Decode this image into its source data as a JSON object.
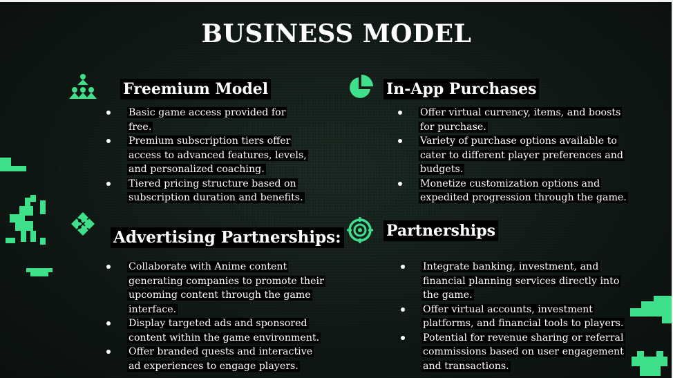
{
  "title": "BUSINESS MODEL",
  "accent_color": "#3fe08c",
  "sections": [
    {
      "heading": "Freemium Model",
      "icon": "people-hierarchy-icon",
      "items": [
        "Basic game access provided for free.",
        "Premium subscription tiers offer access to advanced features, levels, and personalized coaching.",
        "Tiered pricing structure based on subscription duration and benefits."
      ]
    },
    {
      "heading": "In-App Purchases",
      "icon": "pie-chart-icon",
      "items": [
        "Offer virtual currency, items, and boosts for purchase.",
        "Variety of purchase options available to cater to different player preferences and budgets.",
        "Monetize customization options and expedited progression through the game."
      ]
    },
    {
      "heading": "Advertising Partnerships:",
      "icon": "puzzle-icon",
      "items": [
        "Collaborate with Anime content generating companies to promote their upcoming content through the game interface.",
        "Display targeted ads and sponsored content within the game environment.",
        "Offer branded quests and interactive ad experiences to engage players."
      ]
    },
    {
      "heading": "Partnerships",
      "icon": "target-icon",
      "items": [
        "Integrate banking, investment, and financial planning services directly into the game.",
        "Offer virtual accounts, investment platforms, and financial tools to players.",
        "Potential for revenue sharing or referral commissions based on user engagement and transactions."
      ]
    }
  ]
}
